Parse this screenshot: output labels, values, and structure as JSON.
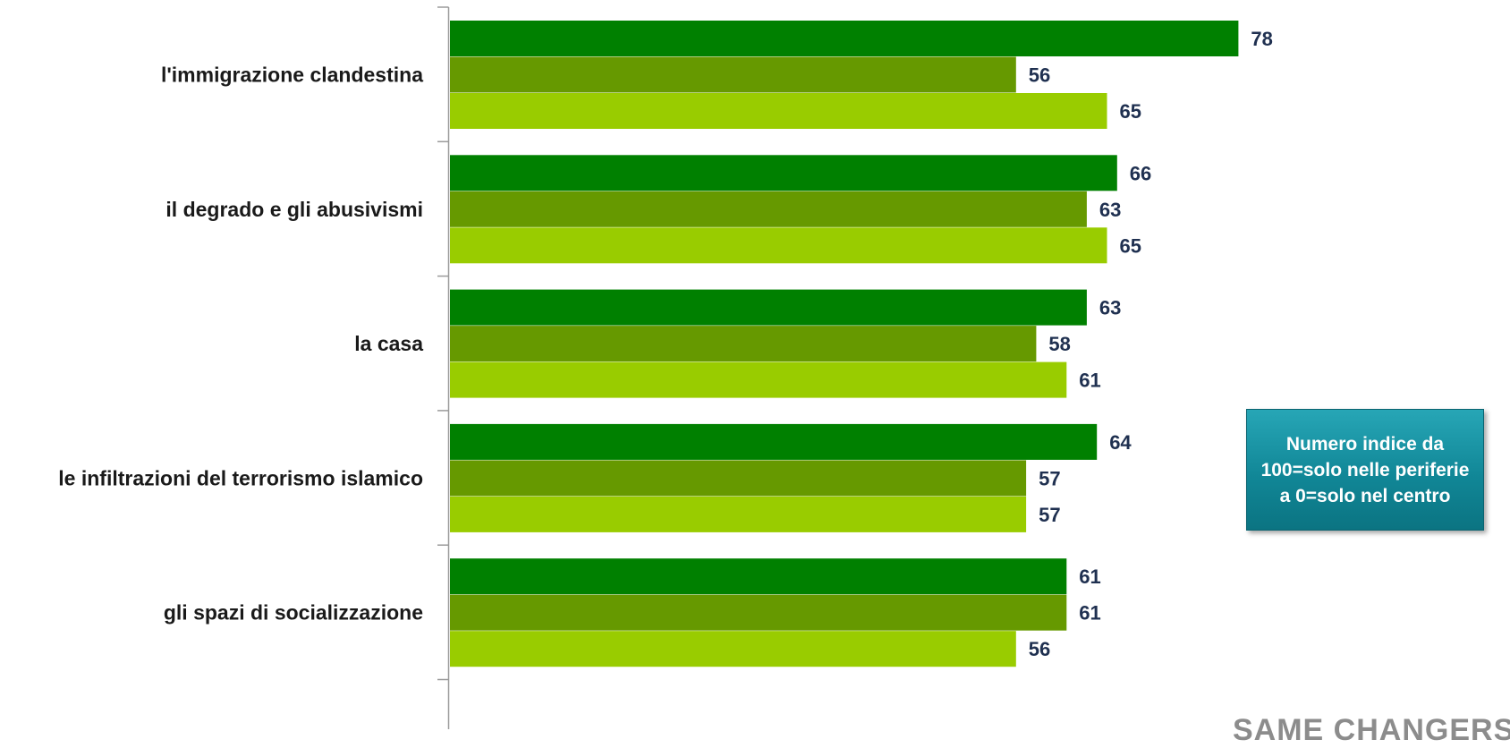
{
  "chart_data": {
    "type": "bar",
    "orientation": "horizontal",
    "categories": [
      "l'immigrazione clandestina",
      "il degrado e gli abusivismi",
      "la casa",
      "le infiltrazioni del terrorismo islamico",
      "gli spazi di socializzazione"
    ],
    "series": [
      {
        "values": [
          78,
          66,
          63,
          64,
          61
        ],
        "color": "#008000"
      },
      {
        "values": [
          56,
          63,
          58,
          57,
          61
        ],
        "color": "#669900"
      },
      {
        "values": [
          65,
          65,
          61,
          57,
          56
        ],
        "color": "#99cc00"
      }
    ],
    "xlim": [
      0,
      100
    ],
    "grid": false,
    "data_labels": true,
    "title": "",
    "xlabel": "",
    "ylabel": ""
  },
  "note": {
    "lines": [
      "Numero indice da",
      "100=solo nelle periferie",
      "a 0=solo nel centro"
    ],
    "color": "#118797"
  },
  "footer": {
    "brand_fragment": "SAME CHANGERS"
  }
}
